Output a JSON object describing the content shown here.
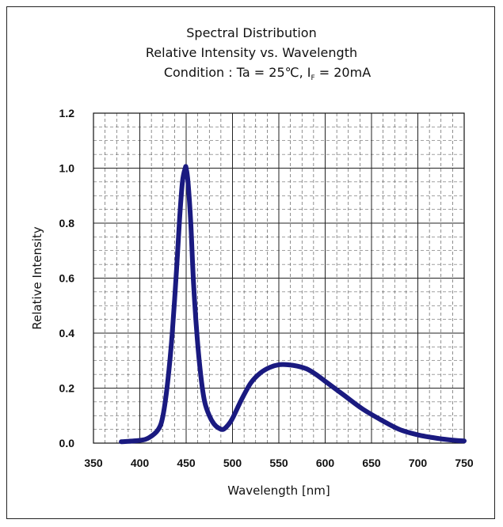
{
  "chart_data": {
    "type": "line",
    "title_lines": [
      "Spectral Distribution",
      "Relative Intensity vs. Wavelength"
    ],
    "condition": {
      "prefix": "Condition : Ta = 25℃, I",
      "subscript": "F",
      "suffix": " = 20mA"
    },
    "xlabel": "Wavelength [nm]",
    "ylabel": "Relative Intensity",
    "xlim": [
      350,
      750
    ],
    "ylim": [
      0,
      1.2
    ],
    "x_ticks": [
      "350",
      "400",
      "450",
      "500",
      "550",
      "600",
      "650",
      "700",
      "750"
    ],
    "y_ticks": [
      "0.0",
      "0.2",
      "0.4",
      "0.6",
      "0.8",
      "1.0",
      "1.2"
    ],
    "grid": true,
    "line_color": "#1a1a80",
    "series": [
      {
        "x": [
          380,
          400,
          410,
          420,
          425,
          430,
          435,
          440,
          443,
          446,
          449,
          450,
          452,
          455,
          458,
          462,
          466,
          470,
          475,
          480,
          485,
          490,
          495,
          500,
          510,
          520,
          530,
          540,
          550,
          560,
          570,
          580,
          590,
          600,
          620,
          640,
          660,
          680,
          700,
          720,
          740,
          750
        ],
        "y": [
          0.005,
          0.01,
          0.02,
          0.05,
          0.1,
          0.22,
          0.4,
          0.65,
          0.82,
          0.95,
          1.0,
          1.0,
          0.95,
          0.8,
          0.58,
          0.38,
          0.24,
          0.15,
          0.1,
          0.07,
          0.055,
          0.05,
          0.065,
          0.09,
          0.16,
          0.22,
          0.255,
          0.275,
          0.285,
          0.285,
          0.28,
          0.27,
          0.25,
          0.225,
          0.175,
          0.125,
          0.085,
          0.05,
          0.03,
          0.018,
          0.01,
          0.008
        ]
      }
    ]
  }
}
